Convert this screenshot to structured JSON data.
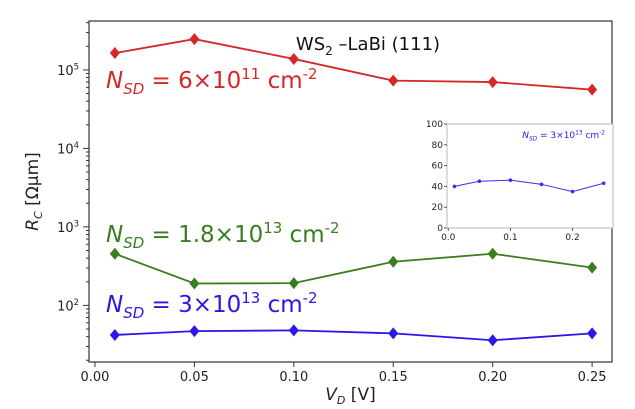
{
  "chart_data": [
    {
      "type": "line",
      "title": "WS₂ –LaBi (111)",
      "xlabel": "V_D [V]",
      "ylabel": "R_C [Ωμm]",
      "xlim": [
        -0.003,
        0.26
      ],
      "ylim": [
        19,
        420000
      ],
      "yscale": "log",
      "grid": false,
      "x": [
        0.01,
        0.05,
        0.1,
        0.15,
        0.2,
        0.25
      ],
      "xticks": [
        "0.00",
        "0.05",
        "0.10",
        "0.15",
        "0.20",
        "0.25"
      ],
      "yticks": [
        "10^2",
        "10^3",
        "10^4",
        "10^5"
      ],
      "series": [
        {
          "name": "N_SD = 6×10^11 cm^-2",
          "color": "#d62728",
          "values": [
            164000,
            247000,
            138000,
            73000,
            70000,
            56000
          ]
        },
        {
          "name": "N_SD = 1.8×10^13 cm^-2",
          "color": "#3a7d1e",
          "values": [
            455,
            190,
            192,
            360,
            455,
            303
          ]
        },
        {
          "name": "N_SD = 3×10^13 cm^-2",
          "color": "#2b17e6",
          "values": [
            42,
            47,
            48,
            44,
            36,
            44
          ]
        }
      ]
    },
    {
      "type": "line",
      "xlim": [
        -0.002,
        0.265
      ],
      "ylim": [
        0,
        100
      ],
      "yscale": "linear",
      "xticks": [
        "0.0",
        "0.1",
        "0.2"
      ],
      "yticks": [
        "0",
        "20",
        "40",
        "60",
        "80",
        "100"
      ],
      "annotation": "N_SD = 3×10^13 cm^-2",
      "x": [
        0.01,
        0.05,
        0.1,
        0.15,
        0.2,
        0.25
      ],
      "series": [
        {
          "name": "N_SD = 3×10^13 cm^-2",
          "color": "#3b2cf5",
          "values": [
            40,
            45,
            46,
            42,
            35,
            43
          ]
        }
      ]
    }
  ]
}
